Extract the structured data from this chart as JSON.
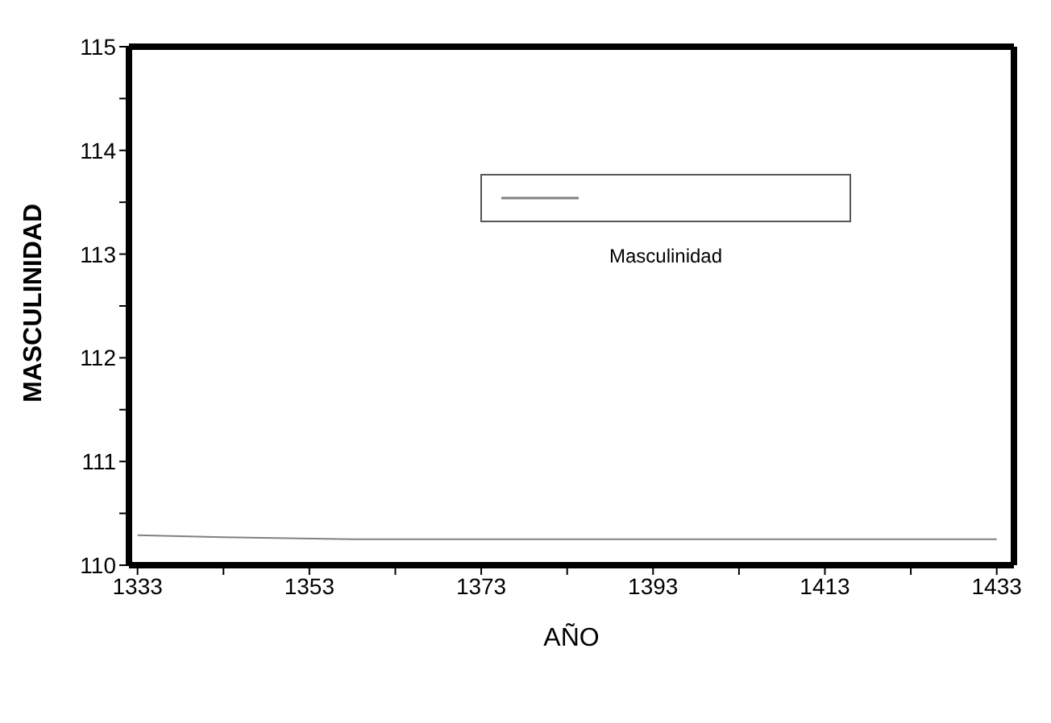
{
  "chart_data": {
    "type": "line",
    "xlabel": "AÑO",
    "ylabel": "MASCULINIDAD",
    "x": [
      1333,
      1338,
      1343,
      1358,
      1383,
      1408,
      1433
    ],
    "series": [
      {
        "name": "Masculinidad",
        "color": "#808080",
        "values": [
          110.29,
          110.28,
          110.27,
          110.25,
          110.25,
          110.25,
          110.25
        ]
      }
    ],
    "xlim": [
      1332,
      1435
    ],
    "xticks": [
      1333,
      {
        "value": 1343,
        "label": null
      },
      1353,
      {
        "value": 1363,
        "label": null
      },
      1373,
      {
        "value": 1383,
        "label": null
      },
      1393,
      {
        "value": 1403,
        "label": null
      },
      1413,
      {
        "value": 1423,
        "label": null
      },
      1433
    ],
    "ylim": [
      110,
      115
    ],
    "yticks": [
      110,
      {
        "value": 110.5,
        "label": null
      },
      111,
      {
        "value": 111.5,
        "label": null
      },
      112,
      {
        "value": 112.5,
        "label": null
      },
      113,
      {
        "value": 113.5,
        "label": null
      },
      114,
      {
        "value": 114.5,
        "label": null
      },
      115
    ],
    "grid": false,
    "legend": "top",
    "marker": "none",
    "line_style": "solid"
  }
}
